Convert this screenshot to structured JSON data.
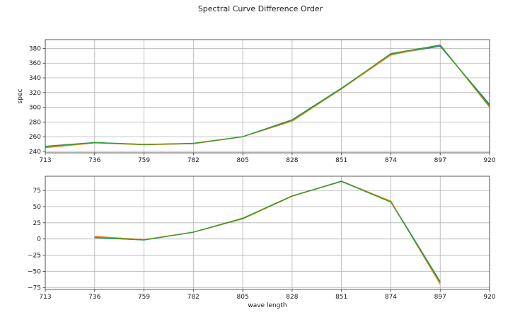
{
  "figure_title": "Spectral Curve Difference Order",
  "chart_data": [
    {
      "type": "line",
      "title": "",
      "xlabel": "",
      "ylabel": "spec",
      "xlim": [
        713,
        920
      ],
      "ylim": [
        238,
        392
      ],
      "x_ticks": [
        713,
        736,
        759,
        782,
        805,
        828,
        851,
        874,
        897,
        920
      ],
      "y_ticks": [
        240,
        260,
        280,
        300,
        320,
        340,
        360,
        380
      ],
      "grid": true,
      "series": [
        {
          "color": "#1f77b4",
          "x": [
            713,
            736,
            759,
            782,
            805,
            828,
            851,
            874,
            897,
            920
          ],
          "values": [
            247,
            252,
            249.5,
            250.5,
            260,
            283,
            326,
            372,
            383,
            304
          ]
        },
        {
          "color": "#ff7f0e",
          "x": [
            713,
            736,
            759,
            782,
            805,
            828,
            851,
            874,
            897,
            920
          ],
          "values": [
            245,
            251.5,
            249,
            250.5,
            260,
            281,
            325,
            371,
            385,
            300
          ]
        },
        {
          "color": "#2ca02c",
          "x": [
            713,
            736,
            759,
            782,
            805,
            828,
            851,
            874,
            897,
            920
          ],
          "values": [
            246.5,
            252,
            249.5,
            251,
            260,
            282.5,
            325.5,
            373,
            384.5,
            302
          ]
        }
      ]
    },
    {
      "type": "line",
      "title": "",
      "xlabel": "wave length",
      "ylabel": "",
      "xlim": [
        713,
        920
      ],
      "ylim": [
        -78,
        97
      ],
      "x_ticks": [
        713,
        736,
        759,
        782,
        805,
        828,
        851,
        874,
        897,
        920
      ],
      "y_ticks": [
        -75,
        -50,
        -25,
        0,
        25,
        50,
        75
      ],
      "y_tick_labels": [
        "−75",
        "−50",
        "−25",
        "0",
        "25",
        "50",
        "75"
      ],
      "grid": true,
      "series": [
        {
          "color": "#1f77b4",
          "x": [
            736,
            759,
            782,
            805,
            828,
            851,
            874,
            897
          ],
          "values": [
            2,
            -1.5,
            10.5,
            32,
            66.5,
            89.5,
            58,
            -66
          ]
        },
        {
          "color": "#ff7f0e",
          "x": [
            736,
            759,
            782,
            805,
            828,
            851,
            874,
            897
          ],
          "values": [
            4,
            -1,
            10.5,
            31,
            66,
            89,
            58.5,
            -70
          ]
        },
        {
          "color": "#2ca02c",
          "x": [
            736,
            759,
            782,
            805,
            828,
            851,
            874,
            897
          ],
          "values": [
            2.5,
            -1.5,
            10.5,
            32,
            66.5,
            89,
            57,
            -67
          ]
        }
      ]
    }
  ]
}
